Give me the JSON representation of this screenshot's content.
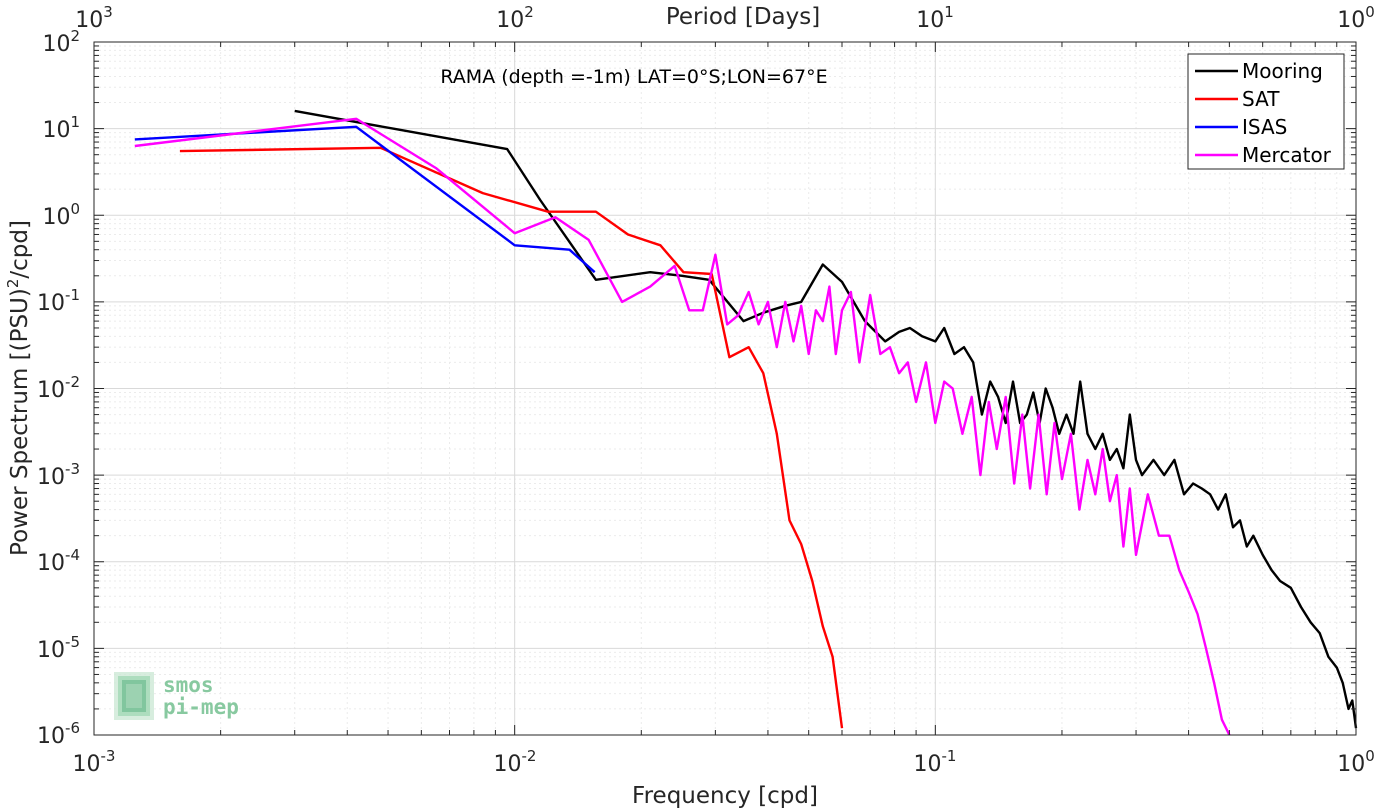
{
  "chart_data": {
    "type": "line",
    "title": "RAMA (depth =-1m) LAT=0°S;LON=67°E",
    "xlabel": "Frequency [cpd]",
    "ylabel": "Power Spectrum [(PSU)²/cpd]",
    "ylabel_main": "Power Spectrum [(PSU)",
    "ylabel_sup": "2",
    "ylabel_tail": "/cpd]",
    "top_axis_label": "Period [Days]",
    "xscale": "log",
    "yscale": "log",
    "xlim": [
      0.001,
      1
    ],
    "ylim": [
      1e-06,
      100
    ],
    "grid": true,
    "legend_position": "top-right",
    "x_tick_labels": [
      {
        "base": "10",
        "exp": "-3"
      },
      {
        "base": "10",
        "exp": "-2"
      },
      {
        "base": "10",
        "exp": "-1"
      },
      {
        "base": "10",
        "exp": "0"
      }
    ],
    "y_tick_labels": [
      {
        "base": "10",
        "exp": "-6"
      },
      {
        "base": "10",
        "exp": "-5"
      },
      {
        "base": "10",
        "exp": "-4"
      },
      {
        "base": "10",
        "exp": "-3"
      },
      {
        "base": "10",
        "exp": "-2"
      },
      {
        "base": "10",
        "exp": "-1"
      },
      {
        "base": "10",
        "exp": "0"
      },
      {
        "base": "10",
        "exp": "1"
      },
      {
        "base": "10",
        "exp": "2"
      }
    ],
    "top_tick_labels": [
      {
        "base": "10",
        "exp": "3"
      },
      {
        "base": "10",
        "exp": "2"
      },
      {
        "base": "10",
        "exp": "1"
      },
      {
        "base": "10",
        "exp": "0"
      }
    ],
    "series": [
      {
        "name": "Mooring",
        "color": "#000000",
        "x": [
          0.003,
          0.0096,
          0.0115,
          0.0156,
          0.021,
          0.025,
          0.029,
          0.035,
          0.039,
          0.044,
          0.048,
          0.054,
          0.06,
          0.068,
          0.076,
          0.082,
          0.087,
          0.093,
          0.1,
          0.105,
          0.111,
          0.117,
          0.123,
          0.129,
          0.135,
          0.141,
          0.147,
          0.153,
          0.159,
          0.165,
          0.171,
          0.177,
          0.183,
          0.19,
          0.197,
          0.205,
          0.213,
          0.221,
          0.23,
          0.24,
          0.25,
          0.26,
          0.27,
          0.28,
          0.29,
          0.3,
          0.31,
          0.33,
          0.35,
          0.37,
          0.39,
          0.41,
          0.43,
          0.45,
          0.47,
          0.49,
          0.51,
          0.53,
          0.55,
          0.57,
          0.6,
          0.63,
          0.66,
          0.7,
          0.74,
          0.78,
          0.82,
          0.86,
          0.9,
          0.93,
          0.96,
          0.98,
          1.0
        ],
        "y": [
          16,
          5.8,
          1.5,
          0.18,
          0.22,
          0.2,
          0.18,
          0.06,
          0.075,
          0.09,
          0.1,
          0.27,
          0.17,
          0.06,
          0.035,
          0.045,
          0.05,
          0.04,
          0.035,
          0.05,
          0.025,
          0.03,
          0.02,
          0.005,
          0.012,
          0.008,
          0.004,
          0.012,
          0.004,
          0.005,
          0.009,
          0.004,
          0.01,
          0.006,
          0.003,
          0.005,
          0.003,
          0.012,
          0.003,
          0.002,
          0.003,
          0.0015,
          0.002,
          0.0012,
          0.005,
          0.0015,
          0.001,
          0.0015,
          0.001,
          0.0015,
          0.0006,
          0.0008,
          0.0007,
          0.0006,
          0.0004,
          0.0006,
          0.00025,
          0.0003,
          0.00015,
          0.0002,
          0.00012,
          8e-05,
          6e-05,
          5e-05,
          3e-05,
          2e-05,
          1.5e-05,
          8e-06,
          6e-06,
          4e-06,
          2e-06,
          2.5e-06,
          1.2e-06
        ]
      },
      {
        "name": "SAT",
        "color": "#ff0000",
        "x": [
          0.0016,
          0.0048,
          0.0084,
          0.012,
          0.0156,
          0.0186,
          0.0222,
          0.0252,
          0.0294,
          0.0324,
          0.036,
          0.039,
          0.042,
          0.045,
          0.048,
          0.051,
          0.054,
          0.057,
          0.06
        ],
        "y": [
          5.5,
          6,
          1.8,
          1.1,
          1.1,
          0.6,
          0.45,
          0.22,
          0.21,
          0.023,
          0.03,
          0.015,
          0.003,
          0.0003,
          0.00016,
          6e-05,
          1.8e-05,
          8e-06,
          1.2e-06
        ]
      },
      {
        "name": "ISAS",
        "color": "#0000ff",
        "x": [
          0.00125,
          0.0042,
          0.01,
          0.0135,
          0.0155
        ],
        "y": [
          7.5,
          10.5,
          0.45,
          0.4,
          0.22
        ]
      },
      {
        "name": "Mercator",
        "color": "#ff00ff",
        "x": [
          0.00125,
          0.0042,
          0.0065,
          0.01,
          0.0125,
          0.015,
          0.018,
          0.021,
          0.024,
          0.026,
          0.028,
          0.03,
          0.032,
          0.034,
          0.036,
          0.038,
          0.04,
          0.042,
          0.044,
          0.046,
          0.048,
          0.05,
          0.052,
          0.054,
          0.056,
          0.058,
          0.06,
          0.063,
          0.066,
          0.07,
          0.074,
          0.078,
          0.082,
          0.086,
          0.09,
          0.095,
          0.1,
          0.105,
          0.11,
          0.116,
          0.122,
          0.128,
          0.134,
          0.14,
          0.147,
          0.154,
          0.161,
          0.168,
          0.176,
          0.184,
          0.192,
          0.2,
          0.21,
          0.22,
          0.23,
          0.24,
          0.25,
          0.26,
          0.27,
          0.28,
          0.29,
          0.3,
          0.32,
          0.34,
          0.36,
          0.38,
          0.4,
          0.42,
          0.44,
          0.46,
          0.48,
          0.5
        ],
        "y": [
          6.3,
          13,
          3.5,
          0.62,
          0.95,
          0.52,
          0.1,
          0.15,
          0.26,
          0.08,
          0.08,
          0.35,
          0.055,
          0.07,
          0.13,
          0.055,
          0.1,
          0.03,
          0.1,
          0.035,
          0.09,
          0.025,
          0.08,
          0.06,
          0.15,
          0.025,
          0.08,
          0.13,
          0.02,
          0.12,
          0.025,
          0.03,
          0.015,
          0.02,
          0.007,
          0.02,
          0.004,
          0.012,
          0.01,
          0.003,
          0.008,
          0.001,
          0.007,
          0.002,
          0.008,
          0.0008,
          0.005,
          0.0007,
          0.005,
          0.0006,
          0.004,
          0.0009,
          0.003,
          0.0004,
          0.0015,
          0.0006,
          0.002,
          0.0005,
          0.001,
          0.00015,
          0.0007,
          0.00012,
          0.0006,
          0.0002,
          0.0002,
          8e-05,
          4.5e-05,
          2.5e-05,
          1e-05,
          4e-06,
          1.5e-06,
          1e-06
        ]
      }
    ]
  },
  "logo": {
    "line1": "smos",
    "line2": "pi-mep"
  }
}
